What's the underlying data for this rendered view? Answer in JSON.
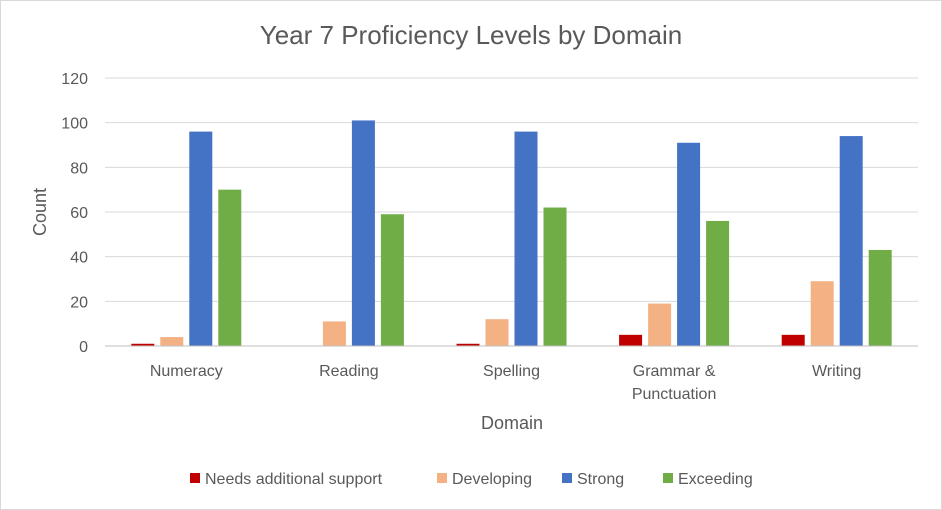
{
  "chart_data": {
    "type": "bar",
    "title": "Year 7 Proficiency Levels by Domain",
    "xlabel": "Domain",
    "ylabel": "Count",
    "ylim": [
      0,
      120
    ],
    "yticks": [
      0,
      20,
      40,
      60,
      80,
      100,
      120
    ],
    "grid": true,
    "legend_position": "bottom",
    "categories": [
      [
        "Numeracy"
      ],
      [
        "Reading"
      ],
      [
        "Spelling"
      ],
      [
        "Grammar &",
        "Punctuation"
      ],
      [
        "Writing"
      ]
    ],
    "series": [
      {
        "name": "Needs additional support",
        "color": "#c00000",
        "values": [
          1,
          0,
          1,
          5,
          5
        ]
      },
      {
        "name": "Developing",
        "color": "#f4b183",
        "values": [
          4,
          11,
          12,
          19,
          29
        ]
      },
      {
        "name": "Strong",
        "color": "#4472c4",
        "values": [
          96,
          101,
          96,
          91,
          94
        ]
      },
      {
        "name": "Exceeding",
        "color": "#70ad47",
        "values": [
          70,
          59,
          62,
          56,
          43
        ]
      }
    ]
  }
}
